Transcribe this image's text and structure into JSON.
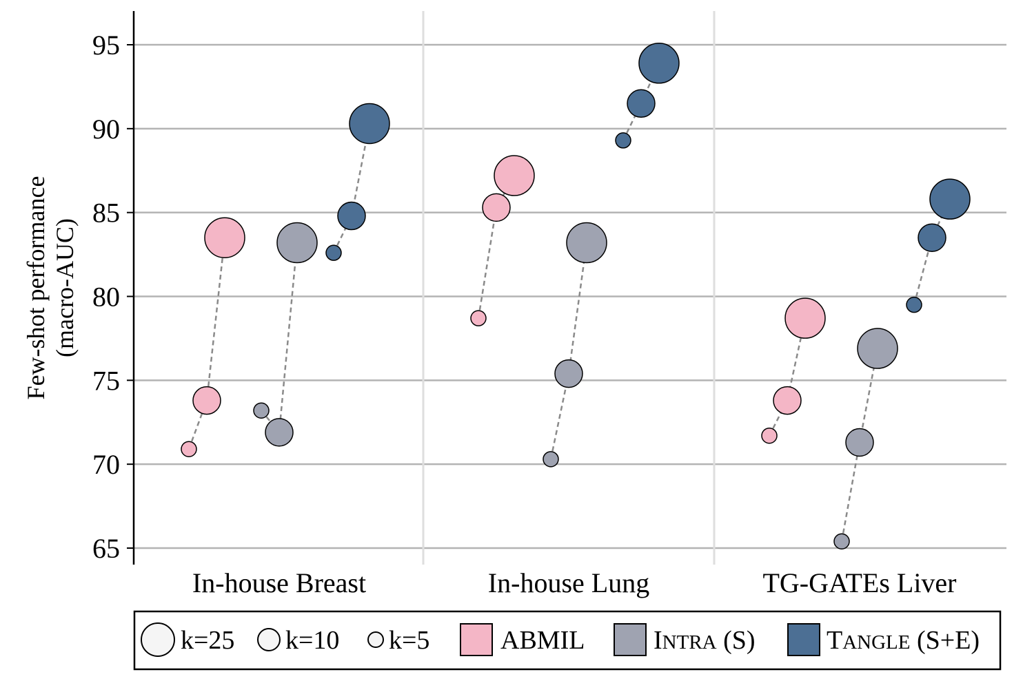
{
  "chart_data": {
    "type": "scatter",
    "ylabel_lines": [
      "Few-shot performance",
      "(macro-AUC)"
    ],
    "ylim": [
      64.2,
      96.8
    ],
    "yticks": [
      65,
      70,
      75,
      80,
      85,
      90,
      95
    ],
    "grid": true,
    "legend_position": "bottom",
    "groups": [
      "In-house Breast",
      "In-house Lung",
      "TG-GATEs Liver"
    ],
    "k_values": [
      5,
      10,
      25
    ],
    "sizes": [
      {
        "k": 25,
        "label": "k=25"
      },
      {
        "k": 10,
        "label": "k=10"
      },
      {
        "k": 5,
        "label": "k=5"
      }
    ],
    "series": [
      {
        "name_main": "ABMIL",
        "name_caps": "",
        "name_rest": "",
        "color": "#f4b6c6",
        "values": [
          [
            70.9,
            73.8,
            83.5
          ],
          [
            78.7,
            85.3,
            87.2
          ],
          [
            71.7,
            73.8,
            78.7
          ]
        ]
      },
      {
        "name_main": "I",
        "name_caps": "NTRA",
        "name_rest": " (S)",
        "color": "#9fa3b1",
        "values": [
          [
            73.2,
            71.9,
            83.2
          ],
          [
            70.3,
            75.4,
            83.2
          ],
          [
            65.4,
            71.3,
            76.9
          ]
        ]
      },
      {
        "name_main": "T",
        "name_caps": "ANGLE",
        "name_rest": " (S+E)",
        "color": "#4c6f94",
        "values": [
          [
            82.6,
            84.8,
            90.3
          ],
          [
            89.3,
            91.5,
            93.9
          ],
          [
            79.5,
            83.5,
            85.8
          ]
        ]
      }
    ]
  }
}
